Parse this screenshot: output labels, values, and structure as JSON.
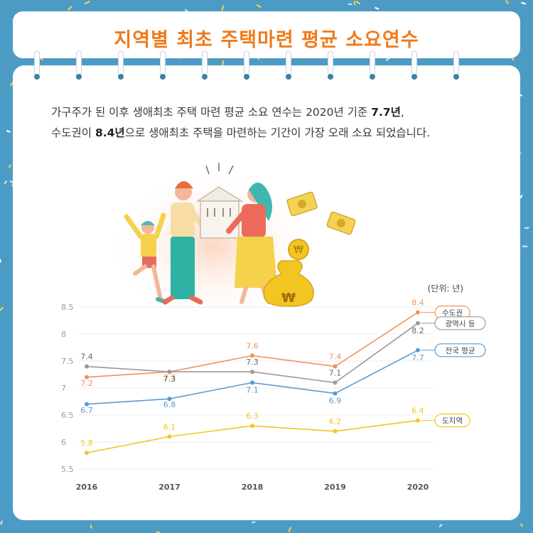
{
  "title": "지역별 최초 주택마련 평균 소요연수",
  "intro": {
    "part1": "가구주가 된 이후 생애최초 주택 마련 평균 소요 연수는 2020년 기준 ",
    "bold1": "7.7년",
    "part2": ",",
    "part3": "수도권이 ",
    "bold2": "8.4년",
    "part4": "으로 생애최초 주택을 마련하는 기간이 가장 오래 소요 되었습니다."
  },
  "chart_data": {
    "type": "line",
    "x": [
      "2016",
      "2017",
      "2018",
      "2019",
      "2020"
    ],
    "unit_label": "(단위: 년)",
    "yticks": [
      "5.5",
      "6",
      "6.5",
      "7",
      "7.5",
      "8",
      "8.5"
    ],
    "ylim": [
      5.5,
      8.5
    ],
    "grid": true,
    "series": [
      {
        "name": "수도권",
        "values": [
          7.2,
          7.3,
          7.6,
          7.4,
          8.4
        ],
        "color": "#f0935a"
      },
      {
        "name": "광역시 등",
        "values": [
          7.4,
          7.3,
          7.3,
          7.1,
          8.2
        ],
        "color": "#9a9a9a"
      },
      {
        "name": "전국 평균",
        "values": [
          6.7,
          6.8,
          7.1,
          6.9,
          7.7
        ],
        "color": "#5b9bd0"
      },
      {
        "name": "도지역",
        "values": [
          5.8,
          6.1,
          6.3,
          6.2,
          6.4
        ],
        "color": "#f3c522"
      }
    ],
    "point_labels": [
      [
        "7.2",
        "7.3",
        "7.6",
        "7.4",
        "8.4"
      ],
      [
        "7.4",
        "7.3",
        "7.3",
        "7.1",
        "8.2"
      ],
      [
        "6.7",
        "6.8",
        "7.1",
        "6.9",
        "7.7"
      ],
      [
        "5.8",
        "6.1",
        "6.3",
        "6.2",
        "6.4"
      ]
    ]
  },
  "colors": {
    "background": "#4c9bc5",
    "title": "#ef7a1a",
    "card": "#ffffff"
  },
  "illustration_icons": [
    "family-icon",
    "house-icon",
    "money-bill-icon",
    "coin-icon",
    "money-bag-icon"
  ]
}
